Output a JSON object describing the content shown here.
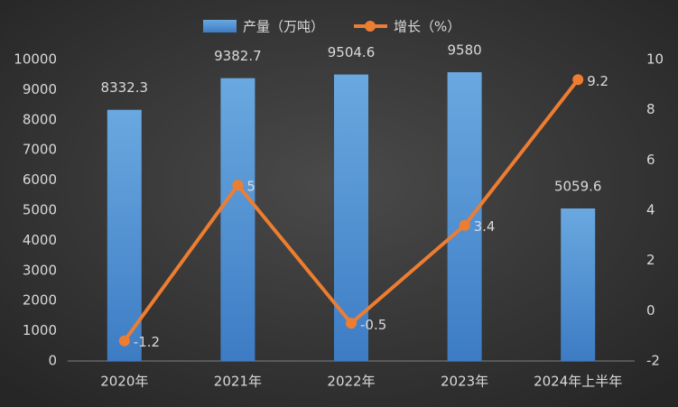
{
  "chart_data": {
    "type": "bar-line",
    "categories": [
      "2020年",
      "2021年",
      "2022年",
      "2023年",
      "2024年上半年"
    ],
    "series": [
      {
        "name": "产量（万吨）",
        "type": "bar",
        "color": "#5b9bd5",
        "values": [
          8332.3,
          9382.7,
          9504.6,
          9580,
          5059.6
        ]
      },
      {
        "name": "增长（%）",
        "type": "line",
        "axis": "y2",
        "color": "#ed7d31",
        "values": [
          -1.2,
          5,
          -0.5,
          3.4,
          9.2
        ]
      }
    ],
    "ylim": [
      0,
      10000
    ],
    "yticks": [
      0,
      1000,
      2000,
      3000,
      4000,
      5000,
      6000,
      7000,
      8000,
      9000,
      10000
    ],
    "y2lim": [
      -2,
      10
    ],
    "y2ticks": [
      -2,
      0,
      2,
      4,
      6,
      8,
      10
    ],
    "legend": "top"
  }
}
